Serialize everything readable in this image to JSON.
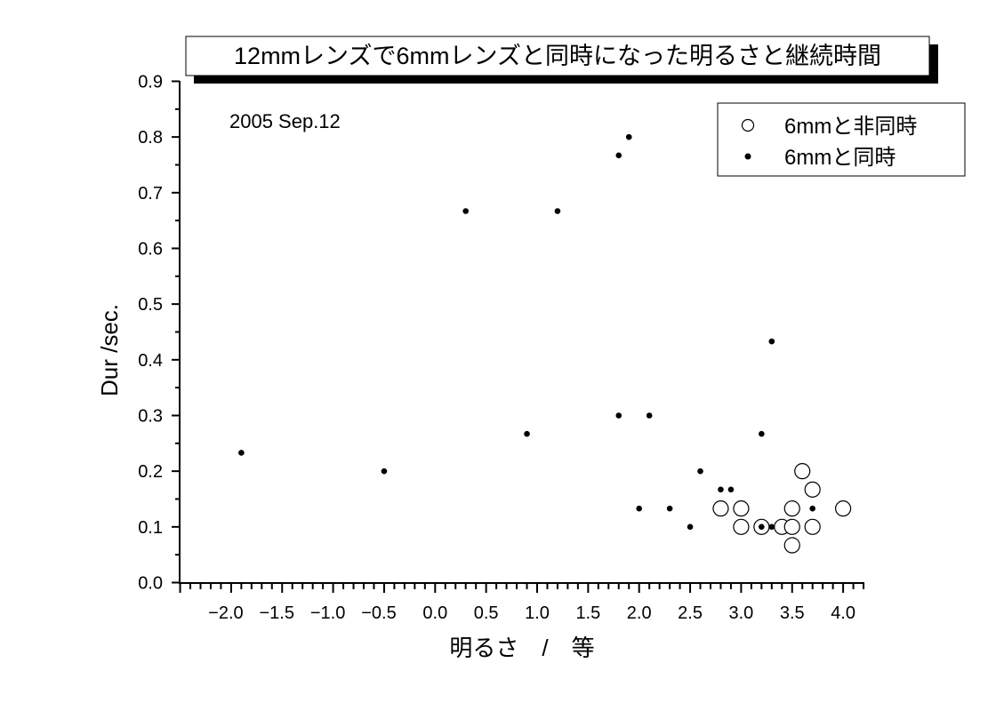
{
  "chart_data": {
    "type": "scatter",
    "title": "12mmレンズで6mmレンズと同時になった明るさと継続時間",
    "annotation": "2005 Sep.12",
    "xlabel": "明るさ　/　等",
    "ylabel": "Dur /sec.",
    "xlim": [
      -2.5,
      4.2
    ],
    "ylim": [
      0.0,
      0.9
    ],
    "x_ticks": [
      "-2.0",
      "-1.5",
      "-1.0",
      "-0.5",
      "0.0",
      "0.5",
      "1.0",
      "1.5",
      "2.0",
      "2.5",
      "3.0",
      "3.5",
      "4.0"
    ],
    "y_ticks": [
      "0.0",
      "0.1",
      "0.2",
      "0.3",
      "0.4",
      "0.5",
      "0.6",
      "0.7",
      "0.8",
      "0.9"
    ],
    "grid": false,
    "legend_position": "upper right",
    "series": [
      {
        "name": "6mmと非同時",
        "marker": "open-circle",
        "points": [
          [
            2.8,
            0.133
          ],
          [
            3.0,
            0.133
          ],
          [
            3.0,
            0.1
          ],
          [
            3.2,
            0.1
          ],
          [
            3.4,
            0.1
          ],
          [
            3.5,
            0.133
          ],
          [
            3.5,
            0.1
          ],
          [
            3.5,
            0.067
          ],
          [
            3.6,
            0.2
          ],
          [
            3.7,
            0.167
          ],
          [
            3.7,
            0.1
          ],
          [
            4.0,
            0.133
          ]
        ]
      },
      {
        "name": "6mmと同時",
        "marker": "filled-dot",
        "points": [
          [
            -1.9,
            0.233
          ],
          [
            -0.5,
            0.2
          ],
          [
            0.3,
            0.667
          ],
          [
            0.9,
            0.267
          ],
          [
            1.2,
            0.667
          ],
          [
            1.8,
            0.767
          ],
          [
            1.9,
            0.8
          ],
          [
            1.8,
            0.3
          ],
          [
            2.1,
            0.3
          ],
          [
            2.0,
            0.133
          ],
          [
            2.3,
            0.133
          ],
          [
            2.5,
            0.1
          ],
          [
            2.6,
            0.2
          ],
          [
            2.8,
            0.167
          ],
          [
            2.9,
            0.167
          ],
          [
            3.2,
            0.267
          ],
          [
            3.3,
            0.433
          ],
          [
            3.2,
            0.1
          ],
          [
            3.3,
            0.1
          ],
          [
            3.7,
            0.133
          ]
        ]
      }
    ]
  },
  "legend": {
    "items": [
      {
        "label": "6mmと非同時",
        "marker": "open-circle-icon"
      },
      {
        "label": "6mmと同時",
        "marker": "filled-dot-icon"
      }
    ]
  },
  "colors": {
    "foreground": "#000000",
    "background": "#ffffff"
  }
}
